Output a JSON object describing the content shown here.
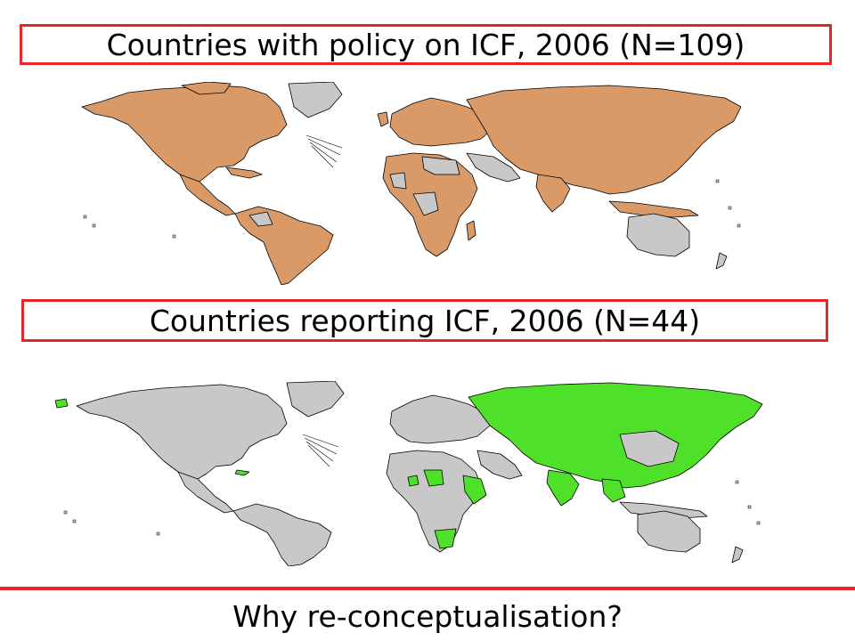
{
  "maps": [
    {
      "title": "Countries with policy on ICF, 2006 (N=109)",
      "highlight_color": "#d99a68",
      "base_color": "#c8c8c8",
      "legend_meaning": "policy on ICF"
    },
    {
      "title": "Countries reporting ICF, 2006 (N=44)",
      "highlight_color": "#4fe02a",
      "base_color": "#c8c8c8",
      "legend_meaning": "reporting ICF"
    }
  ],
  "footer": {
    "question": "Why re-conceptualisation?"
  },
  "colors": {
    "box_border": "#e8262a",
    "outline": "#000000"
  }
}
